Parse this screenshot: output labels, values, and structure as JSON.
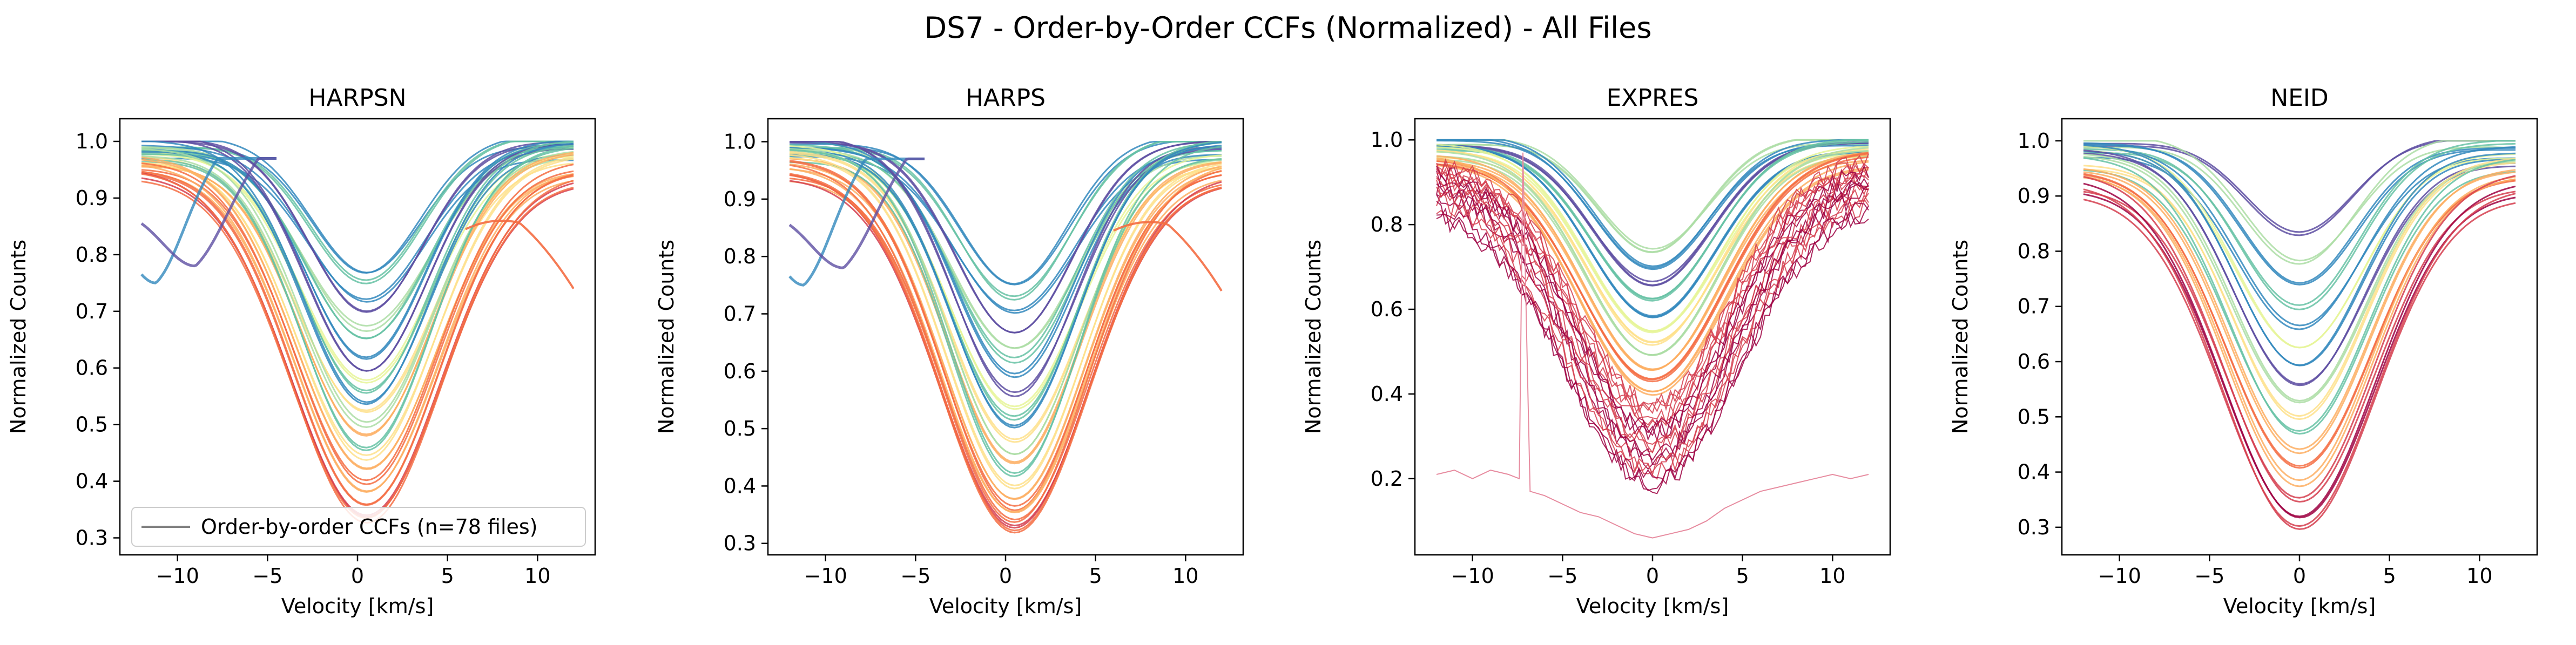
{
  "figure": {
    "suptitle": "DS7 - Order-by-Order CCFs (Normalized) - All Files"
  },
  "style": {
    "palette": [
      "#9e0142",
      "#d53e4f",
      "#f46d43",
      "#fdae61",
      "#fee08b",
      "#e6f598",
      "#abdda4",
      "#66c2a5",
      "#3288bd",
      "#5e4fa2"
    ],
    "legend_line_color": "#808080"
  },
  "chart_data": [
    {
      "type": "line",
      "title": "HARPSN",
      "xlabel": "Velocity [km/s]",
      "ylabel": "Normalized Counts",
      "xlim": [
        -13.2,
        13.2
      ],
      "ylim": [
        0.27,
        1.04
      ],
      "xticks": [
        -10,
        -5,
        0,
        5,
        10
      ],
      "xtick_labels": [
        "−10",
        "−5",
        "0",
        "5",
        "10"
      ],
      "yticks": [
        0.3,
        0.4,
        0.5,
        0.6,
        0.7,
        0.8,
        0.9,
        1.0
      ],
      "ytick_labels": [
        "0.3",
        "0.4",
        "0.5",
        "0.6",
        "0.7",
        "0.8",
        "0.9",
        "1.0"
      ],
      "grid": false,
      "legend": {
        "label": "Order-by-order CCFs (n=78 files)",
        "placement": "lower left"
      },
      "x_range": [
        -12,
        12
      ],
      "center": 0.5,
      "series": [
        {
          "min": 0.77,
          "sigma": 3.0,
          "edge": 1.0,
          "color": "#3288bd"
        },
        {
          "min": 0.75,
          "sigma": 3.1,
          "edge": 1.0,
          "color": "#66c2a5"
        },
        {
          "min": 0.72,
          "sigma": 3.3,
          "edge": 0.98,
          "color": "#3288bd"
        },
        {
          "min": 0.7,
          "sigma": 3.2,
          "edge": 1.0,
          "color": "#5e4fa2"
        },
        {
          "min": 0.67,
          "sigma": 3.5,
          "edge": 0.99,
          "color": "#abdda4"
        },
        {
          "min": 0.65,
          "sigma": 3.4,
          "edge": 0.99,
          "color": "#66c2a5"
        },
        {
          "min": 0.62,
          "sigma": 3.3,
          "edge": 0.99,
          "color": "#3288bd"
        },
        {
          "min": 0.6,
          "sigma": 3.4,
          "edge": 1.0,
          "color": "#5e4fa2"
        },
        {
          "min": 0.58,
          "sigma": 3.6,
          "edge": 0.98,
          "color": "#e6f598"
        },
        {
          "min": 0.56,
          "sigma": 3.5,
          "edge": 0.99,
          "color": "#66c2a5"
        },
        {
          "min": 0.54,
          "sigma": 3.5,
          "edge": 0.99,
          "color": "#3288bd"
        },
        {
          "min": 0.52,
          "sigma": 3.7,
          "edge": 0.97,
          "color": "#fee08b"
        },
        {
          "min": 0.5,
          "sigma": 3.6,
          "edge": 0.98,
          "color": "#abdda4"
        },
        {
          "min": 0.48,
          "sigma": 3.7,
          "edge": 0.97,
          "color": "#fdae61"
        },
        {
          "min": 0.46,
          "sigma": 3.6,
          "edge": 0.98,
          "color": "#66c2a5"
        },
        {
          "min": 0.44,
          "sigma": 3.8,
          "edge": 0.97,
          "color": "#fee08b"
        },
        {
          "min": 0.42,
          "sigma": 3.9,
          "edge": 0.96,
          "color": "#fdae61"
        },
        {
          "min": 0.4,
          "sigma": 3.9,
          "edge": 0.96,
          "color": "#f46d43"
        },
        {
          "min": 0.38,
          "sigma": 4.0,
          "edge": 0.95,
          "color": "#fdae61"
        },
        {
          "min": 0.36,
          "sigma": 4.0,
          "edge": 0.95,
          "color": "#f46d43"
        },
        {
          "min": 0.34,
          "sigma": 4.1,
          "edge": 0.94,
          "color": "#d53e4f"
        },
        {
          "min": 0.33,
          "sigma": 4.1,
          "edge": 0.94,
          "color": "#f46d43"
        }
      ]
    },
    {
      "type": "line",
      "title": "HARPS",
      "xlabel": "Velocity [km/s]",
      "ylabel": "Normalized Counts",
      "xlim": [
        -13.2,
        13.2
      ],
      "ylim": [
        0.28,
        1.04
      ],
      "xticks": [
        -10,
        -5,
        0,
        5,
        10
      ],
      "xtick_labels": [
        "−10",
        "−5",
        "0",
        "5",
        "10"
      ],
      "yticks": [
        0.3,
        0.4,
        0.5,
        0.6,
        0.7,
        0.8,
        0.9,
        1.0
      ],
      "ytick_labels": [
        "0.3",
        "0.4",
        "0.5",
        "0.6",
        "0.7",
        "0.8",
        "0.9",
        "1.0"
      ],
      "grid": false,
      "x_range": [
        -12,
        12
      ],
      "center": 0.5,
      "series": [
        {
          "min": 0.75,
          "sigma": 3.0,
          "edge": 1.0,
          "color": "#3288bd"
        },
        {
          "min": 0.73,
          "sigma": 3.1,
          "edge": 1.0,
          "color": "#66c2a5"
        },
        {
          "min": 0.7,
          "sigma": 3.3,
          "edge": 0.98,
          "color": "#3288bd"
        },
        {
          "min": 0.67,
          "sigma": 3.2,
          "edge": 1.0,
          "color": "#5e4fa2"
        },
        {
          "min": 0.64,
          "sigma": 3.5,
          "edge": 0.99,
          "color": "#abdda4"
        },
        {
          "min": 0.62,
          "sigma": 3.4,
          "edge": 0.99,
          "color": "#66c2a5"
        },
        {
          "min": 0.59,
          "sigma": 3.3,
          "edge": 0.99,
          "color": "#3288bd"
        },
        {
          "min": 0.56,
          "sigma": 3.4,
          "edge": 1.0,
          "color": "#5e4fa2"
        },
        {
          "min": 0.54,
          "sigma": 3.6,
          "edge": 0.98,
          "color": "#e6f598"
        },
        {
          "min": 0.52,
          "sigma": 3.5,
          "edge": 0.99,
          "color": "#66c2a5"
        },
        {
          "min": 0.5,
          "sigma": 3.5,
          "edge": 0.99,
          "color": "#3288bd"
        },
        {
          "min": 0.48,
          "sigma": 3.7,
          "edge": 0.97,
          "color": "#fee08b"
        },
        {
          "min": 0.46,
          "sigma": 3.6,
          "edge": 0.98,
          "color": "#abdda4"
        },
        {
          "min": 0.44,
          "sigma": 3.7,
          "edge": 0.97,
          "color": "#fdae61"
        },
        {
          "min": 0.42,
          "sigma": 3.6,
          "edge": 0.98,
          "color": "#66c2a5"
        },
        {
          "min": 0.4,
          "sigma": 3.8,
          "edge": 0.97,
          "color": "#fee08b"
        },
        {
          "min": 0.38,
          "sigma": 3.9,
          "edge": 0.96,
          "color": "#fdae61"
        },
        {
          "min": 0.36,
          "sigma": 3.9,
          "edge": 0.96,
          "color": "#f46d43"
        },
        {
          "min": 0.35,
          "sigma": 4.0,
          "edge": 0.95,
          "color": "#fdae61"
        },
        {
          "min": 0.34,
          "sigma": 4.0,
          "edge": 0.95,
          "color": "#f46d43"
        },
        {
          "min": 0.33,
          "sigma": 4.1,
          "edge": 0.94,
          "color": "#d53e4f"
        },
        {
          "min": 0.32,
          "sigma": 4.1,
          "edge": 0.94,
          "color": "#f46d43"
        }
      ]
    },
    {
      "type": "line",
      "title": "EXPRES",
      "xlabel": "Velocity [km/s]",
      "ylabel": "Normalized Counts",
      "xlim": [
        -13.2,
        13.2
      ],
      "ylim": [
        0.02,
        1.05
      ],
      "xticks": [
        -10,
        -5,
        0,
        5,
        10
      ],
      "xtick_labels": [
        "−10",
        "−5",
        "0",
        "5",
        "10"
      ],
      "yticks": [
        0.2,
        0.4,
        0.6,
        0.8,
        1.0
      ],
      "ytick_labels": [
        "0.2",
        "0.4",
        "0.6",
        "0.8",
        "1.0"
      ],
      "grid": false,
      "x_range": [
        -12,
        12
      ],
      "center": 0.0,
      "series": [
        {
          "min": 0.74,
          "sigma": 3.0,
          "edge": 1.0,
          "color": "#abdda4"
        },
        {
          "min": 0.7,
          "sigma": 3.2,
          "edge": 1.0,
          "color": "#3288bd"
        },
        {
          "min": 0.66,
          "sigma": 3.3,
          "edge": 0.99,
          "color": "#5e4fa2"
        },
        {
          "min": 0.62,
          "sigma": 3.4,
          "edge": 0.99,
          "color": "#66c2a5"
        },
        {
          "min": 0.58,
          "sigma": 3.5,
          "edge": 0.98,
          "color": "#3288bd"
        },
        {
          "min": 0.55,
          "sigma": 3.6,
          "edge": 0.98,
          "color": "#e6f598"
        },
        {
          "min": 0.52,
          "sigma": 3.6,
          "edge": 0.97,
          "color": "#fee08b"
        },
        {
          "min": 0.49,
          "sigma": 3.7,
          "edge": 0.97,
          "color": "#abdda4"
        },
        {
          "min": 0.46,
          "sigma": 3.8,
          "edge": 0.96,
          "color": "#fdae61"
        },
        {
          "min": 0.43,
          "sigma": 3.9,
          "edge": 0.96,
          "color": "#f46d43"
        },
        {
          "min": 0.4,
          "sigma": 4.0,
          "edge": 0.95,
          "color": "#fdae61"
        },
        {
          "min": 0.37,
          "sigma": 4.1,
          "edge": 0.94,
          "color": "#d53e4f"
        },
        {
          "min": 0.34,
          "sigma": 4.2,
          "edge": 0.93,
          "color": "#d53e4f"
        },
        {
          "min": 0.31,
          "sigma": 4.3,
          "edge": 0.92,
          "color": "#9e0142"
        },
        {
          "min": 0.28,
          "sigma": 4.4,
          "edge": 0.91,
          "color": "#d53e4f"
        },
        {
          "min": 0.25,
          "sigma": 4.5,
          "edge": 0.9,
          "color": "#9e0142"
        },
        {
          "min": 0.22,
          "sigma": 4.6,
          "edge": 0.88,
          "color": "#d53e4f"
        },
        {
          "min": 0.19,
          "sigma": 4.7,
          "edge": 0.86,
          "color": "#9e0142"
        }
      ],
      "outlier": {
        "color": "#e78ca0",
        "x": [
          -12,
          -11,
          -10,
          -9,
          -8,
          -7.4,
          -7.2,
          -7.0,
          -6.8,
          -6,
          -5,
          -4,
          -3,
          -2,
          -1,
          0,
          1,
          2,
          3,
          4,
          5,
          6,
          7,
          8,
          9,
          10,
          11,
          12
        ],
        "y": [
          0.21,
          0.22,
          0.2,
          0.22,
          0.21,
          0.2,
          0.97,
          0.55,
          0.17,
          0.16,
          0.14,
          0.12,
          0.11,
          0.09,
          0.07,
          0.06,
          0.07,
          0.08,
          0.1,
          0.13,
          0.15,
          0.17,
          0.18,
          0.19,
          0.2,
          0.21,
          0.2,
          0.21
        ]
      }
    },
    {
      "type": "line",
      "title": "NEID",
      "xlabel": "Velocity [km/s]",
      "ylabel": "Normalized Counts",
      "xlim": [
        -13.2,
        13.2
      ],
      "ylim": [
        0.25,
        1.04
      ],
      "xticks": [
        -10,
        -5,
        0,
        5,
        10
      ],
      "xtick_labels": [
        "−10",
        "−5",
        "0",
        "5",
        "10"
      ],
      "yticks": [
        0.3,
        0.4,
        0.5,
        0.6,
        0.7,
        0.8,
        0.9,
        1.0
      ],
      "ytick_labels": [
        "0.3",
        "0.4",
        "0.5",
        "0.6",
        "0.7",
        "0.8",
        "0.9",
        "1.0"
      ],
      "grid": false,
      "x_range": [
        -12,
        12
      ],
      "center": 0.0,
      "series": [
        {
          "min": 0.83,
          "sigma": 3.0,
          "edge": 1.0,
          "color": "#5e4fa2"
        },
        {
          "min": 0.78,
          "sigma": 3.1,
          "edge": 1.0,
          "color": "#abdda4"
        },
        {
          "min": 0.74,
          "sigma": 3.2,
          "edge": 0.99,
          "color": "#3288bd"
        },
        {
          "min": 0.7,
          "sigma": 3.3,
          "edge": 0.99,
          "color": "#66c2a5"
        },
        {
          "min": 0.66,
          "sigma": 3.4,
          "edge": 0.98,
          "color": "#3288bd"
        },
        {
          "min": 0.62,
          "sigma": 3.5,
          "edge": 0.98,
          "color": "#e6f598"
        },
        {
          "min": 0.59,
          "sigma": 3.5,
          "edge": 0.98,
          "color": "#3288bd"
        },
        {
          "min": 0.56,
          "sigma": 3.6,
          "edge": 0.97,
          "color": "#5e4fa2"
        },
        {
          "min": 0.53,
          "sigma": 3.7,
          "edge": 0.97,
          "color": "#abdda4"
        },
        {
          "min": 0.5,
          "sigma": 3.7,
          "edge": 0.96,
          "color": "#fee08b"
        },
        {
          "min": 0.47,
          "sigma": 3.8,
          "edge": 0.96,
          "color": "#66c2a5"
        },
        {
          "min": 0.44,
          "sigma": 3.9,
          "edge": 0.95,
          "color": "#fdae61"
        },
        {
          "min": 0.41,
          "sigma": 4.0,
          "edge": 0.94,
          "color": "#f46d43"
        },
        {
          "min": 0.38,
          "sigma": 4.0,
          "edge": 0.94,
          "color": "#fdae61"
        },
        {
          "min": 0.35,
          "sigma": 4.1,
          "edge": 0.93,
          "color": "#d53e4f"
        },
        {
          "min": 0.32,
          "sigma": 4.2,
          "edge": 0.92,
          "color": "#9e0142"
        },
        {
          "min": 0.3,
          "sigma": 4.2,
          "edge": 0.91,
          "color": "#d53e4f"
        }
      ]
    }
  ]
}
